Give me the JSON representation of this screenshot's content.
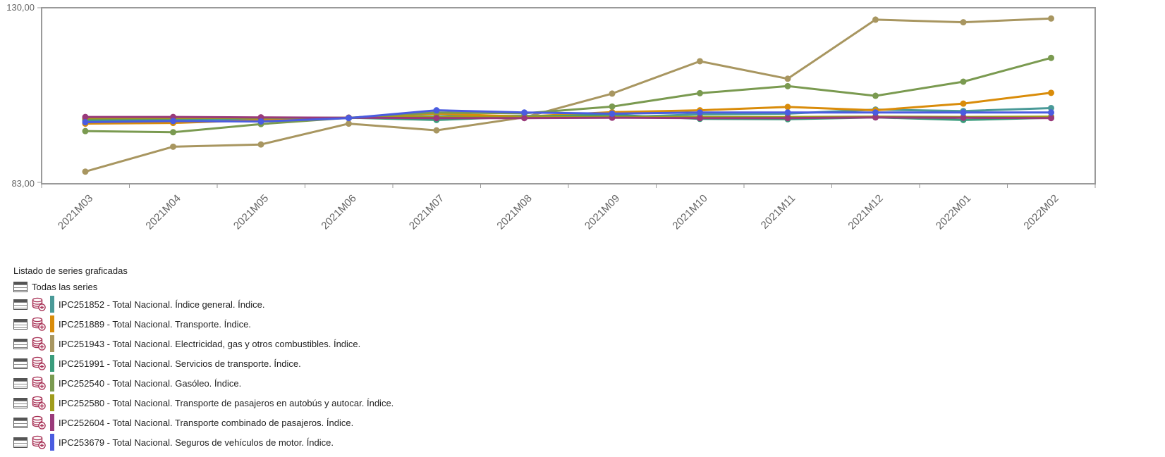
{
  "chart_data": {
    "type": "line",
    "y_tick_labels": [
      "130,00",
      "83,00"
    ],
    "ylim": [
      83,
      130
    ],
    "categories": [
      "2021M03",
      "2021M04",
      "2021M05",
      "2021M06",
      "2021M07",
      "2021M08",
      "2021M09",
      "2021M10",
      "2021M11",
      "2021M12",
      "2022M01",
      "2022M02"
    ],
    "grid": false,
    "series": [
      {
        "name": "IPC251852 - Total Nacional. Índice general. Índice.",
        "color": "#4a9a98",
        "values": [
          99.7,
          99.9,
          100.1,
          100.3,
          100.8,
          100.9,
          100.5,
          101.3,
          101.5,
          102.6,
          102.2,
          103.0
        ]
      },
      {
        "name": "IPC251889 - Total Nacional. Transporte. Índice.",
        "color": "#d98c0a",
        "values": [
          98.8,
          99.0,
          99.8,
          100.3,
          101.5,
          100.7,
          101.9,
          102.4,
          103.3,
          102.4,
          104.2,
          107.1
        ]
      },
      {
        "name": "IPC251943 - Total Nacional. Electricidad, gas y otros combustibles. Índice.",
        "color": "#a89660",
        "values": [
          85.9,
          92.6,
          93.2,
          98.8,
          97.0,
          100.5,
          106.9,
          115.6,
          110.9,
          126.8,
          126.1,
          127.1
        ]
      },
      {
        "name": "IPC251991 - Total Nacional. Servicios de transporte. Índice.",
        "color": "#3a9c7c",
        "values": [
          99.9,
          100.2,
          100.3,
          100.4,
          99.8,
          100.7,
          101.2,
          100.1,
          100.0,
          100.5,
          99.8,
          100.4
        ]
      },
      {
        "name": "IPC252540 - Total Nacional. Gasóleo. Índice.",
        "color": "#7a9a50",
        "values": [
          96.8,
          96.5,
          98.7,
          100.4,
          101.8,
          101.6,
          103.4,
          107.0,
          108.9,
          106.3,
          110.1,
          116.5
        ]
      },
      {
        "name": "IPC252580 - Total Nacional. Transporte de pasajeros en autobús y autocar. Índice.",
        "color": "#a09c1c",
        "values": [
          100.2,
          100.3,
          100.4,
          100.4,
          100.6,
          100.6,
          100.6,
          100.6,
          100.6,
          100.7,
          100.6,
          100.7
        ]
      },
      {
        "name": "IPC252604 - Total Nacional. Transporte combinado de pasajeros. Índice.",
        "color": "#9a3a7a",
        "values": [
          100.6,
          100.6,
          100.5,
          100.4,
          100.3,
          100.3,
          100.4,
          100.3,
          100.3,
          100.5,
          100.4,
          100.3
        ]
      },
      {
        "name": "IPC253679 - Total Nacional. Seguros de vehículos de motor. Índice.",
        "color": "#4a5ce0",
        "values": [
          99.2,
          99.5,
          99.4,
          100.3,
          102.4,
          101.8,
          101.5,
          101.8,
          101.8,
          101.8,
          101.8,
          101.8
        ]
      }
    ]
  },
  "legend": {
    "title": "Listado de series graficadas",
    "all_series_label": "Todas las series",
    "icons": {
      "table": "table-icon",
      "database": "database-add-icon"
    }
  }
}
